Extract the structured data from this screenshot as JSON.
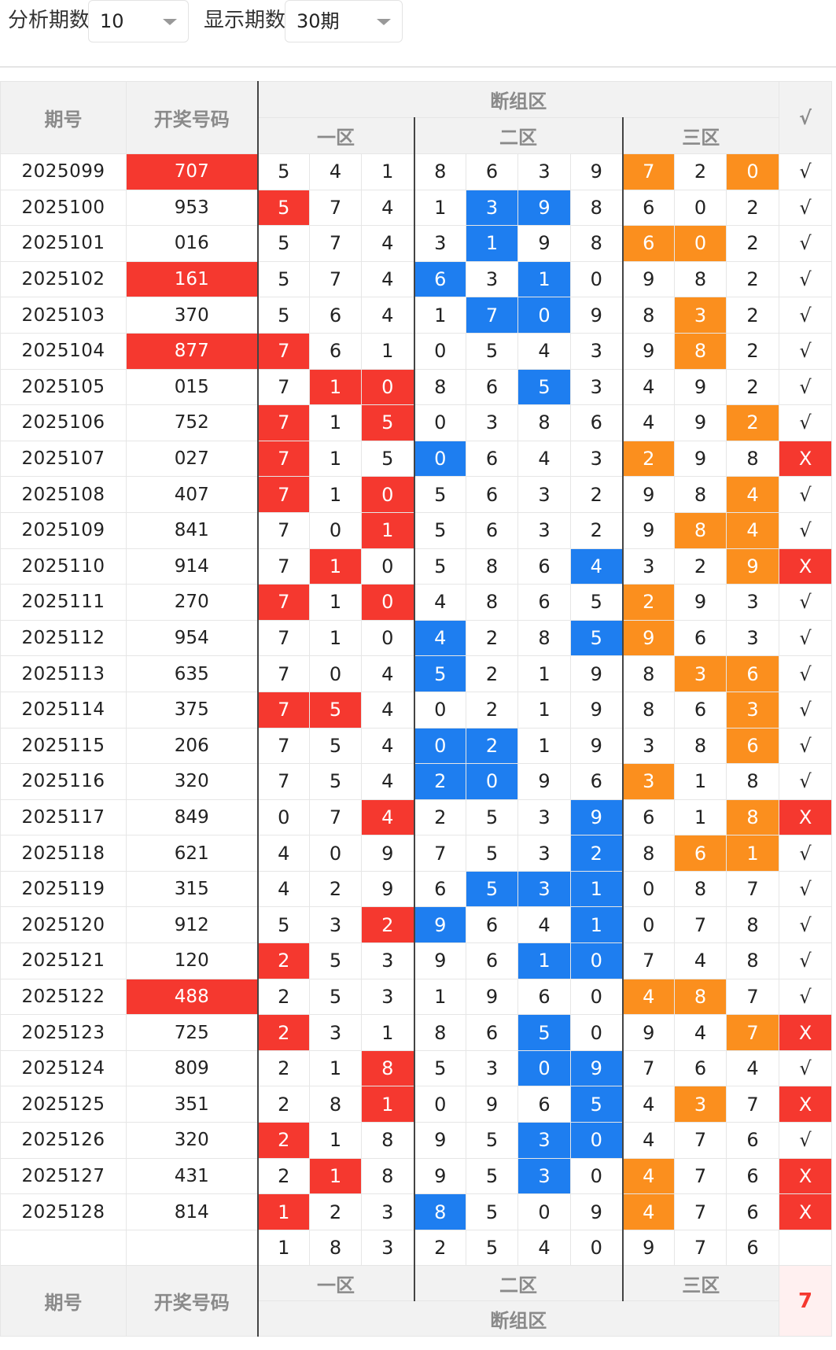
{
  "toolbar": {
    "periods_label": "分析期数",
    "periods_value": "10",
    "display_label": "显示期数",
    "display_value": "30期"
  },
  "headers": {
    "period": "期号",
    "winning": "开奖号码",
    "group": "断组区",
    "zone1": "一区",
    "zone2": "二区",
    "zone3": "三区",
    "check": "√"
  },
  "rows": [
    {
      "period": "2025099",
      "num": "707",
      "numRed": true,
      "cells": [
        "5",
        "4",
        "1",
        "8",
        "6",
        "3",
        "9",
        "7",
        "2",
        "0"
      ],
      "colors": [
        "",
        "",
        "",
        "",
        "",
        "",
        "",
        "o",
        "",
        "o"
      ],
      "mark": "√"
    },
    {
      "period": "2025100",
      "num": "953",
      "numRed": false,
      "cells": [
        "5",
        "7",
        "4",
        "1",
        "3",
        "9",
        "8",
        "6",
        "0",
        "2"
      ],
      "colors": [
        "r",
        "",
        "",
        "",
        "b",
        "b",
        "",
        "",
        "",
        ""
      ],
      "mark": "√"
    },
    {
      "period": "2025101",
      "num": "016",
      "numRed": false,
      "cells": [
        "5",
        "7",
        "4",
        "3",
        "1",
        "9",
        "8",
        "6",
        "0",
        "2"
      ],
      "colors": [
        "",
        "",
        "",
        "",
        "b",
        "",
        "",
        "o",
        "o",
        ""
      ],
      "mark": "√"
    },
    {
      "period": "2025102",
      "num": "161",
      "numRed": true,
      "cells": [
        "5",
        "7",
        "4",
        "6",
        "3",
        "1",
        "0",
        "9",
        "8",
        "2"
      ],
      "colors": [
        "",
        "",
        "",
        "b",
        "",
        "b",
        "",
        "",
        "",
        ""
      ],
      "mark": "√"
    },
    {
      "period": "2025103",
      "num": "370",
      "numRed": false,
      "cells": [
        "5",
        "6",
        "4",
        "1",
        "7",
        "0",
        "9",
        "8",
        "3",
        "2"
      ],
      "colors": [
        "",
        "",
        "",
        "",
        "b",
        "b",
        "",
        "",
        "o",
        ""
      ],
      "mark": "√"
    },
    {
      "period": "2025104",
      "num": "877",
      "numRed": true,
      "cells": [
        "7",
        "6",
        "1",
        "0",
        "5",
        "4",
        "3",
        "9",
        "8",
        "2"
      ],
      "colors": [
        "r",
        "",
        "",
        "",
        "",
        "",
        "",
        "",
        "o",
        ""
      ],
      "mark": "√"
    },
    {
      "period": "2025105",
      "num": "015",
      "numRed": false,
      "cells": [
        "7",
        "1",
        "0",
        "8",
        "6",
        "5",
        "3",
        "4",
        "9",
        "2"
      ],
      "colors": [
        "",
        "r",
        "r",
        "",
        "",
        "b",
        "",
        "",
        "",
        ""
      ],
      "mark": "√"
    },
    {
      "period": "2025106",
      "num": "752",
      "numRed": false,
      "cells": [
        "7",
        "1",
        "5",
        "0",
        "3",
        "8",
        "6",
        "4",
        "9",
        "2"
      ],
      "colors": [
        "r",
        "",
        "r",
        "",
        "",
        "",
        "",
        "",
        "",
        "o"
      ],
      "mark": "√"
    },
    {
      "period": "2025107",
      "num": "027",
      "numRed": false,
      "cells": [
        "7",
        "1",
        "5",
        "0",
        "6",
        "4",
        "3",
        "2",
        "9",
        "8"
      ],
      "colors": [
        "r",
        "",
        "",
        "b",
        "",
        "",
        "",
        "o",
        "",
        ""
      ],
      "mark": "X"
    },
    {
      "period": "2025108",
      "num": "407",
      "numRed": false,
      "cells": [
        "7",
        "1",
        "0",
        "5",
        "6",
        "3",
        "2",
        "9",
        "8",
        "4"
      ],
      "colors": [
        "r",
        "",
        "r",
        "",
        "",
        "",
        "",
        "",
        "",
        "o"
      ],
      "mark": "√"
    },
    {
      "period": "2025109",
      "num": "841",
      "numRed": false,
      "cells": [
        "7",
        "0",
        "1",
        "5",
        "6",
        "3",
        "2",
        "9",
        "8",
        "4"
      ],
      "colors": [
        "",
        "",
        "r",
        "",
        "",
        "",
        "",
        "",
        "o",
        "o"
      ],
      "mark": "√"
    },
    {
      "period": "2025110",
      "num": "914",
      "numRed": false,
      "cells": [
        "7",
        "1",
        "0",
        "5",
        "8",
        "6",
        "4",
        "3",
        "2",
        "9"
      ],
      "colors": [
        "",
        "r",
        "",
        "",
        "",
        "",
        "b",
        "",
        "",
        "o"
      ],
      "mark": "X"
    },
    {
      "period": "2025111",
      "num": "270",
      "numRed": false,
      "cells": [
        "7",
        "1",
        "0",
        "4",
        "8",
        "6",
        "5",
        "2",
        "9",
        "3"
      ],
      "colors": [
        "r",
        "",
        "r",
        "",
        "",
        "",
        "",
        "o",
        "",
        ""
      ],
      "mark": "√"
    },
    {
      "period": "2025112",
      "num": "954",
      "numRed": false,
      "cells": [
        "7",
        "1",
        "0",
        "4",
        "2",
        "8",
        "5",
        "9",
        "6",
        "3"
      ],
      "colors": [
        "",
        "",
        "",
        "b",
        "",
        "",
        "b",
        "o",
        "",
        ""
      ],
      "mark": "√"
    },
    {
      "period": "2025113",
      "num": "635",
      "numRed": false,
      "cells": [
        "7",
        "0",
        "4",
        "5",
        "2",
        "1",
        "9",
        "8",
        "3",
        "6"
      ],
      "colors": [
        "",
        "",
        "",
        "b",
        "",
        "",
        "",
        "",
        "o",
        "o"
      ],
      "mark": "√"
    },
    {
      "period": "2025114",
      "num": "375",
      "numRed": false,
      "cells": [
        "7",
        "5",
        "4",
        "0",
        "2",
        "1",
        "9",
        "8",
        "6",
        "3"
      ],
      "colors": [
        "r",
        "r",
        "",
        "",
        "",
        "",
        "",
        "",
        "",
        "o"
      ],
      "mark": "√"
    },
    {
      "period": "2025115",
      "num": "206",
      "numRed": false,
      "cells": [
        "7",
        "5",
        "4",
        "0",
        "2",
        "1",
        "9",
        "3",
        "8",
        "6"
      ],
      "colors": [
        "",
        "",
        "",
        "b",
        "b",
        "",
        "",
        "",
        "",
        "o"
      ],
      "mark": "√"
    },
    {
      "period": "2025116",
      "num": "320",
      "numRed": false,
      "cells": [
        "7",
        "5",
        "4",
        "2",
        "0",
        "9",
        "6",
        "3",
        "1",
        "8"
      ],
      "colors": [
        "",
        "",
        "",
        "b",
        "b",
        "",
        "",
        "o",
        "",
        ""
      ],
      "mark": "√"
    },
    {
      "period": "2025117",
      "num": "849",
      "numRed": false,
      "cells": [
        "0",
        "7",
        "4",
        "2",
        "5",
        "3",
        "9",
        "6",
        "1",
        "8"
      ],
      "colors": [
        "",
        "",
        "r",
        "",
        "",
        "",
        "b",
        "",
        "",
        "o"
      ],
      "mark": "X"
    },
    {
      "period": "2025118",
      "num": "621",
      "numRed": false,
      "cells": [
        "4",
        "0",
        "9",
        "7",
        "5",
        "3",
        "2",
        "8",
        "6",
        "1"
      ],
      "colors": [
        "",
        "",
        "",
        "",
        "",
        "",
        "b",
        "",
        "o",
        "o"
      ],
      "mark": "√"
    },
    {
      "period": "2025119",
      "num": "315",
      "numRed": false,
      "cells": [
        "4",
        "2",
        "9",
        "6",
        "5",
        "3",
        "1",
        "0",
        "8",
        "7"
      ],
      "colors": [
        "",
        "",
        "",
        "",
        "b",
        "b",
        "b",
        "",
        "",
        ""
      ],
      "mark": "√"
    },
    {
      "period": "2025120",
      "num": "912",
      "numRed": false,
      "cells": [
        "5",
        "3",
        "2",
        "9",
        "6",
        "4",
        "1",
        "0",
        "7",
        "8"
      ],
      "colors": [
        "",
        "",
        "r",
        "b",
        "",
        "",
        "b",
        "",
        "",
        ""
      ],
      "mark": "√"
    },
    {
      "period": "2025121",
      "num": "120",
      "numRed": false,
      "cells": [
        "2",
        "5",
        "3",
        "9",
        "6",
        "1",
        "0",
        "7",
        "4",
        "8"
      ],
      "colors": [
        "r",
        "",
        "",
        "",
        "",
        "b",
        "b",
        "",
        "",
        ""
      ],
      "mark": "√"
    },
    {
      "period": "2025122",
      "num": "488",
      "numRed": true,
      "cells": [
        "2",
        "5",
        "3",
        "1",
        "9",
        "6",
        "0",
        "4",
        "8",
        "7"
      ],
      "colors": [
        "",
        "",
        "",
        "",
        "",
        "",
        "",
        "o",
        "o",
        ""
      ],
      "mark": "√"
    },
    {
      "period": "2025123",
      "num": "725",
      "numRed": false,
      "cells": [
        "2",
        "3",
        "1",
        "8",
        "6",
        "5",
        "0",
        "9",
        "4",
        "7"
      ],
      "colors": [
        "r",
        "",
        "",
        "",
        "",
        "b",
        "",
        "",
        "",
        "o"
      ],
      "mark": "X"
    },
    {
      "period": "2025124",
      "num": "809",
      "numRed": false,
      "cells": [
        "2",
        "1",
        "8",
        "5",
        "3",
        "0",
        "9",
        "7",
        "6",
        "4"
      ],
      "colors": [
        "",
        "",
        "r",
        "",
        "",
        "b",
        "b",
        "",
        "",
        ""
      ],
      "mark": "√"
    },
    {
      "period": "2025125",
      "num": "351",
      "numRed": false,
      "cells": [
        "2",
        "8",
        "1",
        "0",
        "9",
        "6",
        "5",
        "4",
        "3",
        "7"
      ],
      "colors": [
        "",
        "",
        "r",
        "",
        "",
        "",
        "b",
        "",
        "o",
        ""
      ],
      "mark": "X"
    },
    {
      "period": "2025126",
      "num": "320",
      "numRed": false,
      "cells": [
        "2",
        "1",
        "8",
        "9",
        "5",
        "3",
        "0",
        "4",
        "7",
        "6"
      ],
      "colors": [
        "r",
        "",
        "",
        "",
        "",
        "b",
        "b",
        "",
        "",
        ""
      ],
      "mark": "√"
    },
    {
      "period": "2025127",
      "num": "431",
      "numRed": false,
      "cells": [
        "2",
        "1",
        "8",
        "9",
        "5",
        "3",
        "0",
        "4",
        "7",
        "6"
      ],
      "colors": [
        "",
        "r",
        "",
        "",
        "",
        "b",
        "",
        "o",
        "",
        ""
      ],
      "mark": "X"
    },
    {
      "period": "2025128",
      "num": "814",
      "numRed": false,
      "cells": [
        "1",
        "2",
        "3",
        "8",
        "5",
        "0",
        "9",
        "4",
        "7",
        "6"
      ],
      "colors": [
        "r",
        "",
        "",
        "b",
        "",
        "",
        "",
        "o",
        "",
        ""
      ],
      "mark": "X"
    }
  ],
  "summary_row": [
    "1",
    "8",
    "3",
    "2",
    "5",
    "4",
    "0",
    "9",
    "7",
    "6"
  ],
  "footer": {
    "period": "期号",
    "winning": "开奖号码",
    "zone1": "一区",
    "zone2": "二区",
    "zone3": "三区",
    "group": "断组区",
    "score": "7"
  }
}
